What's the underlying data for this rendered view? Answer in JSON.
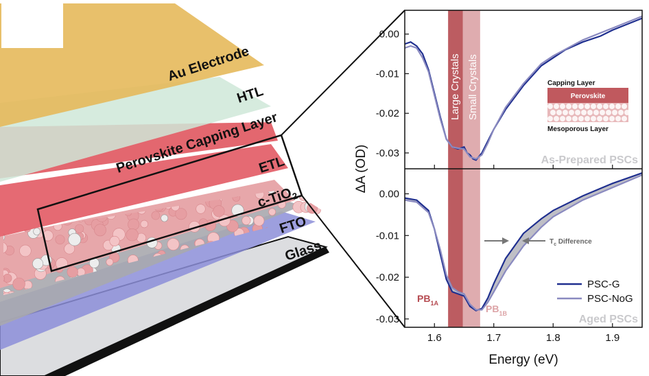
{
  "diagram": {
    "layers": {
      "au": "Au Electrode",
      "htl": "HTL",
      "capping": "Perovskite Capping Layer",
      "etl": "ETL",
      "ctio2_base": "c-TiO",
      "ctio2_sub": "2",
      "fto": "FTO",
      "glass": "Glass"
    }
  },
  "inset": {
    "capping_label": "Capping Layer",
    "perovskite_label": "Perovskite",
    "mesoporous_label": "Mesoporous Layer"
  },
  "bands": {
    "large": "Large Crystals",
    "small": "Small Crystals"
  },
  "panels": {
    "top_label": "As-Prepared PSCs",
    "bottom_label": "Aged PSCs",
    "pb1a_base": "PB",
    "pb1a_sub": "1A",
    "pb1b_base": "PB",
    "pb1b_sub": "1B",
    "tc_base": "T",
    "tc_sub": "c",
    "tc_rest": " Difference"
  },
  "chart_data": {
    "type": "line",
    "xlabel": "Energy (eV)",
    "ylabel": "ΔA (OD)",
    "xlim": [
      1.55,
      1.95
    ],
    "ylim_top": [
      -0.034,
      0.006
    ],
    "ylim_bottom": [
      -0.032,
      0.006
    ],
    "xticks": [
      "1.6",
      "1.7",
      "1.8",
      "1.9"
    ],
    "yticks_top": [
      "0.00",
      "-0.01",
      "-0.02",
      "-0.03"
    ],
    "yticks_bottom": [
      "0.00",
      "-0.01",
      "-0.02",
      "-0.03"
    ],
    "bands_ev": {
      "large": [
        1.623,
        1.648
      ],
      "small": [
        1.648,
        1.677
      ]
    },
    "legend": [
      "PSC-G",
      "PSC-NoG"
    ],
    "colors": {
      "psc_g": "#1f2f8f",
      "psc_nog": "#8a8ac0",
      "large_band": "#b54a50",
      "small_band": "#dca3a6",
      "fill_diff": "#bfbfc6"
    },
    "series": [
      {
        "name": "PSC-G",
        "panel": "top",
        "x": [
          1.55,
          1.56,
          1.57,
          1.58,
          1.59,
          1.6,
          1.61,
          1.62,
          1.63,
          1.64,
          1.65,
          1.655,
          1.66,
          1.665,
          1.67,
          1.68,
          1.69,
          1.7,
          1.72,
          1.75,
          1.78,
          1.8,
          1.82,
          1.85,
          1.88,
          1.9,
          1.95
        ],
        "y": [
          -0.0025,
          -0.002,
          -0.003,
          -0.005,
          -0.009,
          -0.015,
          -0.021,
          -0.0265,
          -0.0285,
          -0.029,
          -0.0285,
          -0.03,
          -0.0305,
          -0.0315,
          -0.0318,
          -0.03,
          -0.027,
          -0.024,
          -0.019,
          -0.013,
          -0.008,
          -0.006,
          -0.004,
          -0.002,
          -0.0005,
          0.001,
          0.004
        ]
      },
      {
        "name": "PSC-NoG",
        "panel": "top",
        "x": [
          1.55,
          1.56,
          1.57,
          1.58,
          1.59,
          1.6,
          1.61,
          1.62,
          1.63,
          1.64,
          1.65,
          1.66,
          1.67,
          1.68,
          1.69,
          1.7,
          1.72,
          1.75,
          1.78,
          1.8,
          1.85,
          1.9,
          1.95
        ],
        "y": [
          -0.0035,
          -0.003,
          -0.0035,
          -0.006,
          -0.0095,
          -0.0155,
          -0.0215,
          -0.0265,
          -0.0285,
          -0.0288,
          -0.029,
          -0.031,
          -0.0315,
          -0.0305,
          -0.0275,
          -0.024,
          -0.0185,
          -0.0125,
          -0.0075,
          -0.0055,
          -0.0015,
          0.0015,
          0.0045
        ]
      },
      {
        "name": "PSC-G",
        "panel": "bottom",
        "x": [
          1.55,
          1.57,
          1.59,
          1.6,
          1.61,
          1.62,
          1.63,
          1.64,
          1.65,
          1.66,
          1.67,
          1.68,
          1.69,
          1.7,
          1.72,
          1.75,
          1.78,
          1.8,
          1.85,
          1.9,
          1.95
        ],
        "y": [
          -0.001,
          -0.0015,
          -0.004,
          -0.0085,
          -0.0145,
          -0.0205,
          -0.0235,
          -0.024,
          -0.0245,
          -0.027,
          -0.028,
          -0.0275,
          -0.025,
          -0.0215,
          -0.0155,
          -0.0095,
          -0.006,
          -0.004,
          -0.0005,
          0.0025,
          0.005
        ]
      },
      {
        "name": "PSC-NoG",
        "panel": "bottom",
        "x": [
          1.55,
          1.57,
          1.59,
          1.6,
          1.61,
          1.62,
          1.63,
          1.64,
          1.65,
          1.66,
          1.67,
          1.68,
          1.69,
          1.7,
          1.72,
          1.75,
          1.78,
          1.8,
          1.85,
          1.9,
          1.95
        ],
        "y": [
          -0.0015,
          -0.002,
          -0.0045,
          -0.0085,
          -0.0135,
          -0.0195,
          -0.0225,
          -0.0235,
          -0.024,
          -0.0265,
          -0.0278,
          -0.0278,
          -0.026,
          -0.0235,
          -0.0185,
          -0.0125,
          -0.008,
          -0.0055,
          -0.0015,
          0.0015,
          0.0045
        ]
      }
    ]
  }
}
